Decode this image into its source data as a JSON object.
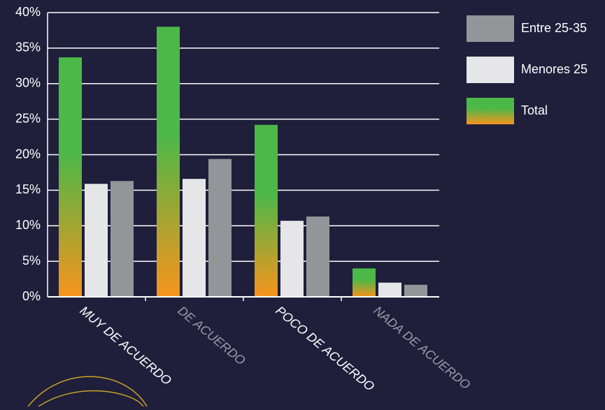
{
  "chart_data": {
    "type": "bar",
    "categories": [
      "MUY DE ACUERDO",
      "DE ACUERDO",
      "POCO DE ACUERDO",
      "NADA DE ACUERDO"
    ],
    "series": [
      {
        "name": "Total",
        "color": [
          "#4cb848",
          "#f7941d"
        ],
        "values": [
          33.7,
          38,
          24.2,
          4
        ]
      },
      {
        "name": "Menores 25",
        "color": "#e6e6e8",
        "values": [
          15.9,
          16.6,
          10.7,
          2
        ]
      },
      {
        "name": "Entre 25-35",
        "color": "#939598",
        "values": [
          16.3,
          19.4,
          11.3,
          1.7
        ]
      }
    ],
    "ylim": [
      0,
      40
    ],
    "yticks": [
      {
        "value": 0,
        "label": "0%"
      },
      {
        "value": 5,
        "label": "5%"
      },
      {
        "value": 10,
        "label": "10%"
      },
      {
        "value": 15,
        "label": "15%"
      },
      {
        "value": 20,
        "label": "20%"
      },
      {
        "value": 25,
        "label": "25%"
      },
      {
        "value": 30,
        "label": "30%"
      },
      {
        "value": 35,
        "label": "35%"
      },
      {
        "value": 40,
        "label": "40%"
      }
    ],
    "grid": true
  }
}
